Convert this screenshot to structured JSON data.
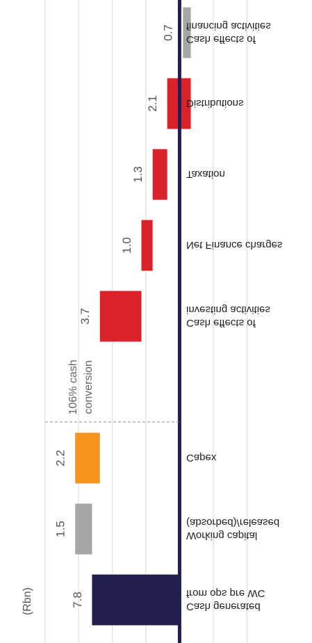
{
  "chart_data": {
    "type": "waterfall",
    "unit_label": "(Rbn)",
    "categories": [
      "Cash generated\nfrom ops pre WC",
      "Working capital\n(absorbed)/released",
      "Capex",
      "Cash effects of\ninvesting activities",
      "Net Finance charges",
      "Taxation",
      "Distributions",
      "Cash effects of\nfinancing activities"
    ],
    "values": [
      7.8,
      1.5,
      -2.2,
      -3.7,
      -1.0,
      -1.3,
      -2.1,
      0.7
    ],
    "value_labels": [
      "7.8",
      "1.5",
      "2.2",
      "3.7",
      "1.0",
      "1.3",
      "2.1",
      "0.7"
    ],
    "colors": [
      "#221f4f",
      "#a6a6a6",
      "#f7941d",
      "#d9222a",
      "#d9222a",
      "#d9222a",
      "#d9222a",
      "#a6a6a6"
    ],
    "annotation": "106% cash\nconversion",
    "xlim": [
      16,
      -11.8
    ],
    "xticks": [
      12,
      9,
      6,
      3,
      -3,
      -6
    ],
    "grid": true
  }
}
